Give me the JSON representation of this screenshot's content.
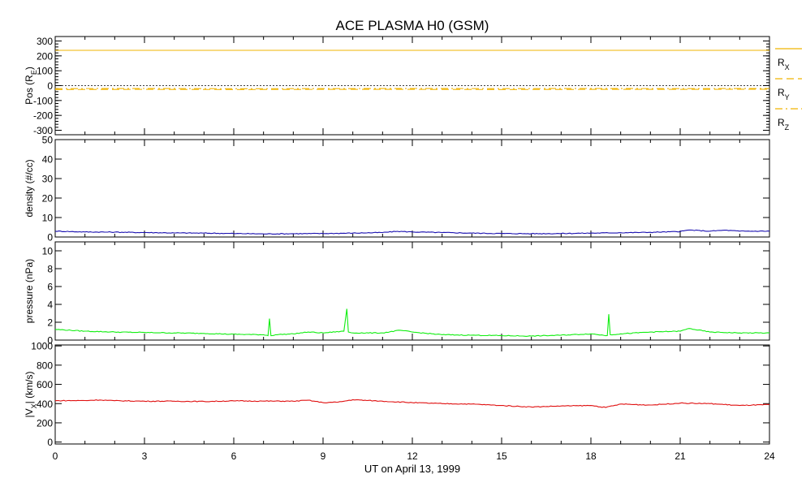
{
  "chart_data": {
    "title": "ACE PLASMA H0 (GSM)",
    "xlabel": "UT on April 13, 1999",
    "x_ticks": [
      "0",
      "3",
      "6",
      "9",
      "12",
      "15",
      "18",
      "21",
      "24"
    ],
    "xlim": [
      0,
      24
    ],
    "panels": [
      {
        "type": "line",
        "ylabel": "Pos (R",
        "ylabel_sub": "E",
        "ylabel_tail": ")",
        "ylim": [
          -330,
          330
        ],
        "y_ticks": [
          300,
          200,
          100,
          0,
          -100,
          -200,
          -300
        ],
        "zero_line": true,
        "legend_position": "right",
        "series": [
          {
            "name": "R",
            "sub": "X",
            "color": "#f0b400",
            "style": "solid",
            "x": [
              0,
              6,
              12,
              18,
              24
            ],
            "values": [
              237,
              237,
              237,
              237,
              237
            ]
          },
          {
            "name": "R",
            "sub": "Y",
            "color": "#f0b400",
            "style": "dashed",
            "x": [
              0,
              3,
              6,
              9,
              12,
              15,
              18,
              21,
              24
            ],
            "values": [
              -26,
              -25,
              -26,
              -25,
              -25,
              -26,
              -25,
              -25,
              -24
            ]
          },
          {
            "name": "R",
            "sub": "Z",
            "color": "#f0b400",
            "style": "dashdot",
            "x": [
              0,
              3,
              6,
              9,
              12,
              15,
              18,
              21,
              24
            ],
            "values": [
              -20,
              -19,
              -21,
              -20,
              -19,
              -20,
              -19,
              -20,
              -19
            ]
          }
        ]
      },
      {
        "type": "line",
        "ylabel": "density (#/cc)",
        "ylim": [
          0,
          50
        ],
        "y_ticks": [
          50,
          40,
          30,
          20,
          10,
          0
        ],
        "series": [
          {
            "color": "#1a10b0",
            "x": [
              0,
              1,
              2,
              3,
              4,
              5,
              6,
              7,
              8,
              9,
              10,
              11,
              11.5,
              12,
              13,
              14,
              15,
              16,
              17,
              18,
              19,
              20,
              21,
              21.3,
              22,
              22.5,
              23,
              24
            ],
            "values": [
              3.0,
              2.6,
              2.5,
              2.3,
              2.1,
              2.0,
              1.8,
              1.6,
              1.7,
              1.8,
              2.0,
              2.3,
              2.9,
              2.6,
              2.3,
              2.0,
              1.8,
              1.7,
              1.8,
              2.0,
              2.2,
              2.4,
              2.8,
              3.6,
              3.0,
              3.5,
              3.0,
              3.0
            ]
          }
        ]
      },
      {
        "type": "line",
        "ylabel": "pressure (nPa)",
        "ylim": [
          0,
          11
        ],
        "y_ticks": [
          10,
          8,
          6,
          4,
          2,
          0
        ],
        "series": [
          {
            "color": "#10ee10",
            "x": [
              0,
              1,
              2,
              3,
              4,
              5,
              6,
              7,
              7.15,
              7.2,
              7.25,
              7.4,
              8,
              8.5,
              9,
              9.7,
              9.8,
              9.85,
              10,
              11,
              11.6,
              12,
              13,
              14,
              15,
              16,
              17,
              18,
              18.55,
              18.6,
              18.65,
              19,
              20,
              21,
              21.3,
              22,
              23,
              24
            ],
            "values": [
              1.2,
              1.0,
              0.9,
              0.85,
              0.8,
              0.75,
              0.65,
              0.6,
              0.5,
              2.4,
              0.5,
              0.6,
              0.7,
              0.9,
              0.8,
              1.0,
              3.5,
              0.9,
              0.8,
              0.8,
              1.1,
              0.9,
              0.6,
              0.55,
              0.5,
              0.45,
              0.55,
              0.7,
              0.5,
              2.9,
              0.6,
              0.7,
              0.9,
              1.0,
              1.3,
              0.9,
              0.8,
              0.8
            ]
          }
        ]
      },
      {
        "type": "line",
        "ylabel": "|V",
        "ylabel_sub": "X",
        "ylabel_tail": "| (km/s)",
        "ylim": [
          -20,
          1010
        ],
        "y_ticks": [
          1000,
          800,
          600,
          400,
          200,
          0
        ],
        "series": [
          {
            "color": "#e01010",
            "x": [
              0,
              1,
              1.5,
              2,
              3,
              4,
              5,
              6,
              7,
              8,
              8.5,
              9,
              9.5,
              10,
              11,
              12,
              13,
              14,
              15,
              16,
              17,
              18,
              18.5,
              19,
              20,
              21,
              22,
              23,
              24
            ],
            "values": [
              430,
              432,
              438,
              430,
              425,
              425,
              422,
              428,
              426,
              425,
              435,
              410,
              415,
              440,
              425,
              410,
              400,
              395,
              380,
              365,
              375,
              380,
              360,
              395,
              385,
              405,
              400,
              380,
              390
            ]
          }
        ]
      }
    ]
  }
}
